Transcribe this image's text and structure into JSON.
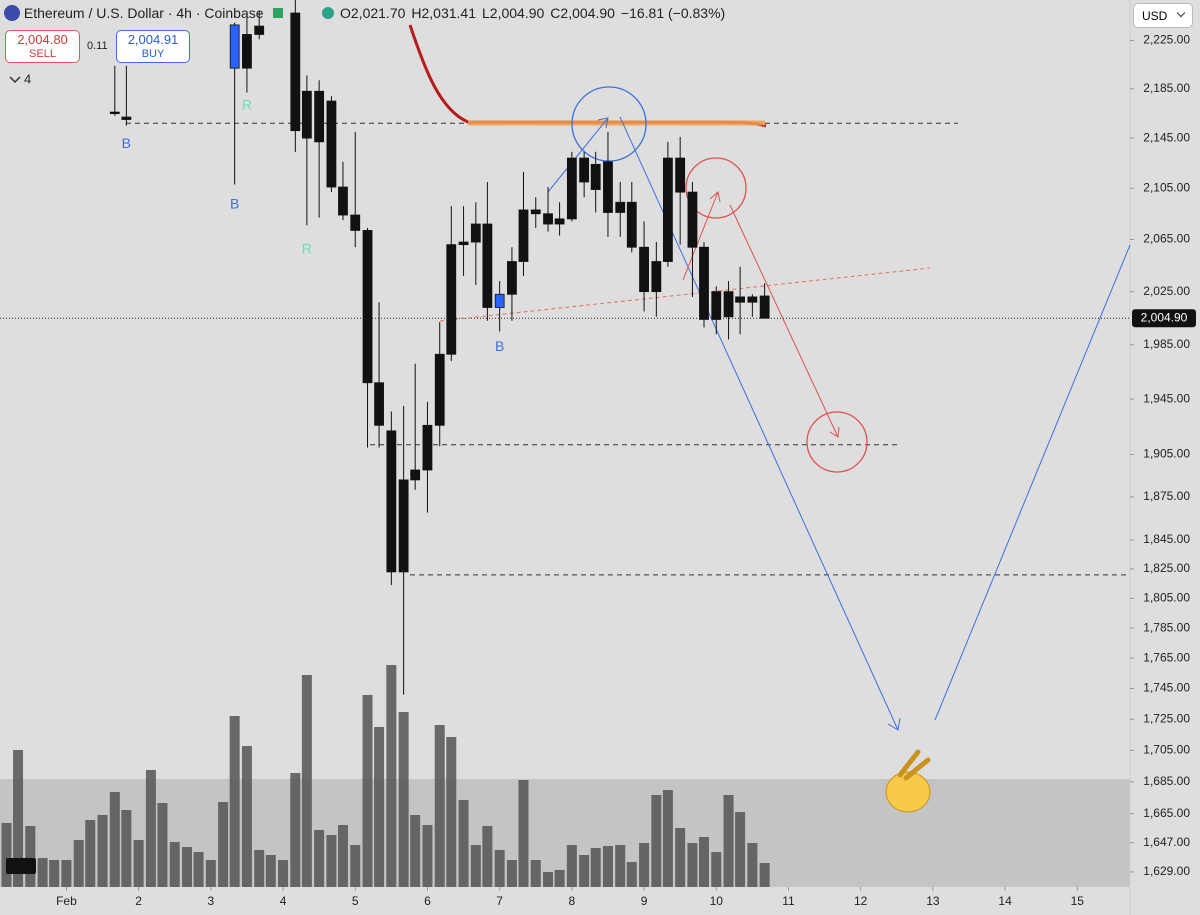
{
  "header": {
    "symbol": "Ethereum / U.S. Dollar · 4h · Coinbase",
    "ohlc": [
      "O2,021.70",
      "H2,031.41",
      "L2,004.90",
      "C2,004.90",
      "−16.81 (−0.83%)"
    ],
    "sell_price": "2,004.80",
    "sell_label": "SELL",
    "spread": "0.11",
    "buy_price": "2,004.91",
    "buy_label": "BUY",
    "indicator_count": "4",
    "currency": "USD"
  },
  "chart_data": {
    "type": "candlestick",
    "log_scale": true,
    "ylim": [
      1615,
      2259
    ],
    "yticks": [
      {
        "value": 2225,
        "label": "2,225.00"
      },
      {
        "value": 2185,
        "label": "2,185.00"
      },
      {
        "value": 2145,
        "label": "2,145.00"
      },
      {
        "value": 2105,
        "label": "2,105.00"
      },
      {
        "value": 2065,
        "label": "2,065.00"
      },
      {
        "value": 2025,
        "label": "2,025.00"
      },
      {
        "value": 1985,
        "label": "1,985.00"
      },
      {
        "value": 1945,
        "label": "1,945.00"
      },
      {
        "value": 1905,
        "label": "1,905.00"
      },
      {
        "value": 1875,
        "label": "1,875.00"
      },
      {
        "value": 1845,
        "label": "1,845.00"
      },
      {
        "value": 1825,
        "label": "1,825.00"
      },
      {
        "value": 1805,
        "label": "1,805.00"
      },
      {
        "value": 1785,
        "label": "1,785.00"
      },
      {
        "value": 1765,
        "label": "1,765.00"
      },
      {
        "value": 1745,
        "label": "1,745.00"
      },
      {
        "value": 1725,
        "label": "1,725.00"
      },
      {
        "value": 1705,
        "label": "1,705.00"
      },
      {
        "value": 1685,
        "label": "1,685.00"
      },
      {
        "value": 1665,
        "label": "1,665.00"
      },
      {
        "value": 1647,
        "label": "1,647.00"
      },
      {
        "value": 1629,
        "label": "1,629.00"
      }
    ],
    "xlim": [
      0.08,
      15.73
    ],
    "xticks": [
      {
        "value": 1,
        "label": "Feb"
      },
      2,
      3,
      4,
      5,
      6,
      7,
      8,
      9,
      10,
      11,
      12,
      13,
      14,
      15
    ],
    "candles": {
      "color": "#111111",
      "highlight_color": "#2962ff",
      "highlight": [
        2,
        22
      ],
      "x": [
        1.67,
        1.83,
        3.33,
        3.5,
        3.67,
        4.17,
        4.33,
        4.5,
        4.67,
        4.83,
        5.0,
        5.17,
        5.33,
        5.5,
        5.67,
        5.83,
        6.0,
        6.17,
        6.33,
        6.5,
        6.67,
        6.83,
        7.0,
        7.17,
        7.33,
        7.5,
        7.67,
        7.83,
        8.0,
        8.17,
        8.33,
        8.5,
        8.67,
        8.83,
        9.0,
        9.17,
        9.33,
        9.5,
        9.67,
        9.83,
        10.0,
        10.17,
        10.33,
        10.5,
        10.67
      ],
      "open": [
        2166,
        2162,
        2202,
        2230,
        2230,
        2248,
        2183,
        2183,
        2175,
        2106,
        2084,
        2072,
        1957,
        1922,
        1823,
        1887,
        1894,
        1926,
        1978,
        2061,
        2063,
        2077,
        2013,
        2023,
        2048,
        2088,
        2085,
        2077,
        2081,
        2129,
        2124,
        2126,
        2094,
        2094,
        2059,
        2025,
        2048,
        2129,
        2102,
        2059,
        2004,
        2025,
        2017,
        2021,
        2021.7
      ],
      "high": [
        2204,
        2204,
        2240,
        2244,
        2250,
        2259,
        2196,
        2192,
        2179,
        2126,
        2150,
        2074,
        2017,
        1936,
        1940,
        1971,
        1943,
        2002,
        2091,
        2091,
        2094,
        2110,
        2033,
        2059,
        2118,
        2098,
        2106,
        2094,
        2134,
        2134,
        2134,
        2150,
        2110,
        2110,
        2079,
        2063,
        2142,
        2146,
        2110,
        2063,
        2029,
        2033,
        2044,
        2023,
        2031.41
      ],
      "low": [
        2163,
        2155,
        2108,
        2182,
        2226,
        2134,
        2076,
        2082,
        2102,
        2080,
        2059,
        1910,
        1910,
        1814,
        1741,
        1880,
        1864,
        1911,
        1973,
        2037,
        2030,
        2003,
        1995,
        2003,
        2037,
        2074,
        2071,
        2068,
        2079,
        2098,
        2086,
        2067,
        2067,
        2055,
        2010,
        2006,
        2044,
        2061,
        2021,
        1998,
        1993,
        1989,
        1993,
        2006,
        2004.9
      ],
      "close": [
        2165,
        2160,
        2238,
        2202,
        2237,
        2151,
        2145,
        2142,
        2106,
        2084,
        2072,
        1957,
        1926,
        1823,
        1887,
        1894,
        1926,
        1978,
        2061,
        2063,
        2077,
        2013,
        2023,
        2048,
        2088,
        2085,
        2077,
        2081,
        2129,
        2110,
        2104,
        2086,
        2086,
        2059,
        2025,
        2048,
        2129,
        2102,
        2059,
        2004,
        2025,
        2006,
        2021,
        2017,
        2004.9
      ]
    },
    "volume": {
      "color": "#555555",
      "vlim": [
        0,
        887
      ],
      "x": [
        0.17,
        0.33,
        0.5,
        0.67,
        0.83,
        1,
        1.17,
        1.33,
        1.5,
        1.67,
        1.83,
        2,
        2.17,
        2.33,
        2.5,
        2.67,
        2.83,
        3,
        3.17,
        3.33,
        3.5,
        3.67,
        3.83,
        4,
        4.17,
        4.33,
        4.5,
        4.67,
        4.83,
        5,
        5.17,
        5.33,
        5.5,
        5.67,
        5.83,
        6,
        6.17,
        6.33,
        6.5,
        6.67,
        6.83,
        7,
        7.17,
        7.33,
        7.5,
        7.67,
        7.83,
        8,
        8.17,
        8.33,
        8.5,
        8.67,
        8.83,
        9,
        9.17,
        9.33,
        9.5,
        9.67,
        9.83,
        10,
        10.17,
        10.33,
        10.5,
        10.67
      ],
      "values": [
        64,
        137,
        61,
        29,
        27,
        27,
        47,
        67,
        72,
        95,
        77,
        47,
        117,
        84,
        45,
        40,
        35,
        27,
        85,
        171,
        141,
        37,
        32,
        27,
        114,
        212,
        57,
        52,
        62,
        42,
        192,
        160,
        222,
        175,
        72,
        62,
        162,
        150,
        87,
        42,
        61,
        37,
        27,
        107,
        27,
        15,
        17,
        42,
        32,
        39,
        41,
        42,
        25,
        44,
        92,
        97,
        59,
        44,
        50,
        35,
        92,
        75,
        44,
        24
      ]
    },
    "signals": [
      {
        "x": 1.83,
        "y": 2140,
        "label": "B",
        "color": "#3d6fe0"
      },
      {
        "x": 3.33,
        "y": 2092,
        "label": "B",
        "color": "#3d6fe0"
      },
      {
        "x": 3.5,
        "y": 2171,
        "label": "R",
        "color": "#6fdcc0"
      },
      {
        "x": 4.33,
        "y": 2057,
        "label": "R",
        "color": "#6fdcc0"
      },
      {
        "x": 7.0,
        "y": 1983,
        "label": "B",
        "color": "#3d6fe0"
      }
    ],
    "levels": [
      2157,
      1912,
      1821
    ],
    "last_price": {
      "value": 2004.9,
      "label": "2,004.90"
    }
  }
}
